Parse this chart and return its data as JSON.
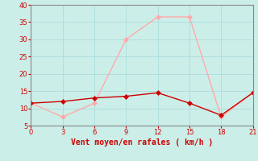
{
  "x": [
    0,
    3,
    6,
    9,
    12,
    15,
    18,
    21
  ],
  "y_moyen": [
    11.5,
    12.0,
    13.0,
    13.5,
    14.5,
    11.5,
    8.0,
    14.5
  ],
  "y_rafales": [
    11.5,
    7.5,
    11.5,
    30.0,
    36.5,
    36.5,
    7.5,
    14.5
  ],
  "color_moyen": "#cc0000",
  "color_rafales": "#ffaaaa",
  "bg_color": "#cceee8",
  "grid_color": "#aadddd",
  "xlabel": "Vent moyen/en rafales ( km/h )",
  "xlabel_color": "#cc0000",
  "tick_color": "#cc0000",
  "spine_color": "#888888",
  "ylim": [
    5,
    40
  ],
  "xlim": [
    0,
    21
  ],
  "yticks": [
    5,
    10,
    15,
    20,
    25,
    30,
    35,
    40
  ],
  "xticks": [
    0,
    3,
    6,
    9,
    12,
    15,
    18,
    21
  ],
  "marker_size": 3,
  "linewidth": 1.0
}
